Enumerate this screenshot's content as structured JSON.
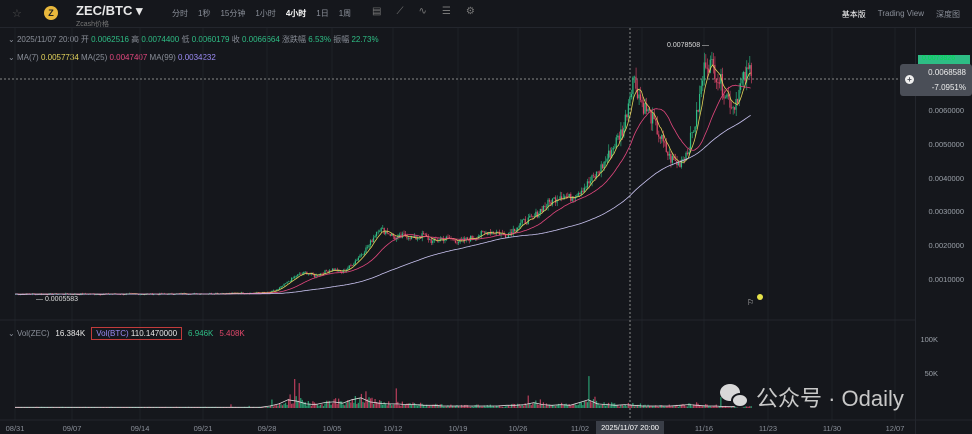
{
  "header": {
    "pair": "ZEC/BTC",
    "subtitle": "Zcash价格",
    "timeframes": [
      "分时",
      "1秒",
      "15分钟",
      "1小时",
      "4小时",
      "1日",
      "1周"
    ],
    "active_timeframe": "4小时",
    "views": [
      "基本版",
      "Trading View",
      "深度图"
    ],
    "active_view": "基本版"
  },
  "ohlc": {
    "date": "2025/11/07 20:00",
    "open_label": "开",
    "open": "0.0062516",
    "high_label": "高",
    "high": "0.0074400",
    "low_label": "低",
    "low": "0.0060179",
    "close_label": "收",
    "close": "0.0066664",
    "change_label": "涨跌幅",
    "change": "6.53%",
    "amp_label": "振幅",
    "amp": "22.73%"
  },
  "ma": {
    "ma7_label": "MA(7)",
    "ma7": "0.0057734",
    "ma25_label": "MA(25)",
    "ma25": "0.0047407",
    "ma99_label": "MA(99)",
    "ma99": "0.0034232"
  },
  "volume": {
    "vol_zec_label": "Vol(ZEC)",
    "vol_zec": "16.384K",
    "vol_btc_label": "Vol(BTC)",
    "vol_btc": "110.1470000",
    "v1": "6.946K",
    "v2": "5.408K"
  },
  "price_tag": {
    "last": "0.0073826",
    "cursor_price": "0.0068588",
    "cursor_change": "-7.0951%"
  },
  "annotations": {
    "high": "0.0078508",
    "low": "0.0005583"
  },
  "watermark": "公众号 · Odaily",
  "colors": {
    "up": "#2ebd85",
    "down": "#e0476a",
    "ma7": "#e3d35b",
    "ma25": "#e3477e",
    "ma99": "#9b8cf5",
    "bg": "#15171c"
  },
  "chart_data": {
    "type": "candlestick",
    "y_ticks": [
      "0.0060000",
      "0.0050000",
      "0.0040000",
      "0.0030000",
      "0.0020000",
      "0.0010000"
    ],
    "vol_ticks": [
      "100K",
      "50K"
    ],
    "x_ticks": [
      "08/31",
      "09/07",
      "09/14",
      "09/21",
      "09/28",
      "10/05",
      "10/12",
      "10/19",
      "10/26",
      "11/02",
      "11/16",
      "11/23",
      "11/30",
      "12/07"
    ],
    "crosshair_x": "2025/11/07 20:00",
    "start_date": "2025-08-31",
    "daily_close": [
      0.00056,
      0.00056,
      0.00056,
      0.00056,
      0.00056,
      0.00056,
      0.00056,
      0.00056,
      0.00056,
      0.00056,
      0.00056,
      0.00056,
      0.00056,
      0.00056,
      0.00056,
      0.00056,
      0.00056,
      0.00057,
      0.00057,
      0.00057,
      0.00057,
      0.00058,
      0.00058,
      0.00058,
      0.00059,
      0.00059,
      0.0006,
      0.0006,
      0.0007,
      0.0009,
      0.0011,
      0.0012,
      0.0011,
      0.0012,
      0.0013,
      0.0012,
      0.0014,
      0.0017,
      0.002,
      0.0025,
      0.0024,
      0.0022,
      0.0023,
      0.0022,
      0.0023,
      0.0021,
      0.0022,
      0.0022,
      0.0021,
      0.0022,
      0.0023,
      0.0024,
      0.0024,
      0.0023,
      0.0025,
      0.0027,
      0.0028,
      0.0031,
      0.0033,
      0.0035,
      0.0034,
      0.0036,
      0.0038,
      0.0041,
      0.0045,
      0.005,
      0.0055,
      0.007,
      0.0062,
      0.0058,
      0.0052,
      0.0046,
      0.0044,
      0.0048,
      0.0058,
      0.0075,
      0.0072,
      0.0066,
      0.0061,
      0.0068,
      0.0073
    ],
    "daily_volume_k": [
      1,
      1,
      1,
      1,
      1,
      1,
      1,
      1,
      1,
      1,
      1,
      1,
      1,
      1,
      1,
      1,
      1,
      1,
      1,
      1,
      1,
      1,
      1,
      1,
      1,
      1,
      1,
      1,
      3,
      6,
      12,
      10,
      6,
      5,
      8,
      9,
      7,
      12,
      15,
      9,
      7,
      6,
      6,
      5,
      5,
      4,
      4,
      3,
      3,
      3,
      3,
      3,
      3,
      3,
      4,
      4,
      5,
      8,
      5,
      4,
      5,
      4,
      8,
      12,
      6,
      5,
      4,
      5,
      4,
      3,
      3,
      3,
      3,
      4,
      5,
      4,
      3,
      3,
      2,
      2,
      2
    ]
  }
}
